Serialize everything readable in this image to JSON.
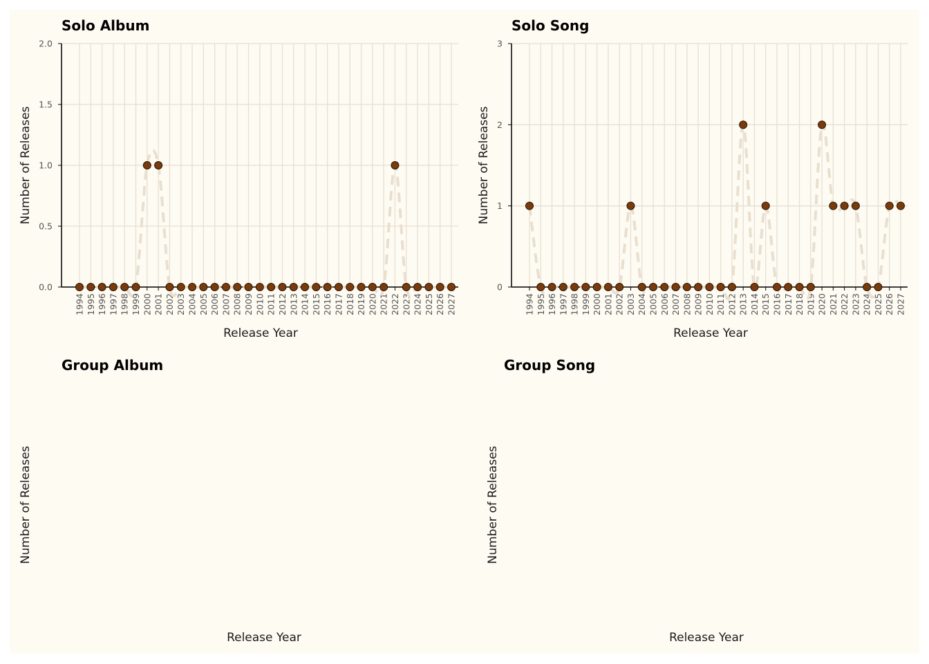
{
  "colors": {
    "background": "#fefbf3",
    "point": "#7a3b0c",
    "line": "#e9dfcf",
    "grid": "#e6e0d3"
  },
  "chart_data": [
    {
      "type": "line",
      "title": "Solo Album",
      "xlabel": "Release Year",
      "ylabel": "Number of Releases",
      "x": [
        "1994",
        "1995",
        "1996",
        "1997",
        "1998",
        "1999",
        "2000",
        "2001",
        "2002",
        "2003",
        "2004",
        "2005",
        "2006",
        "2007",
        "2008",
        "2009",
        "2010",
        "2011",
        "2012",
        "2013",
        "2014",
        "2015",
        "2016",
        "2017",
        "2018",
        "2019",
        "2020",
        "2021",
        "2022",
        "2023",
        "2024",
        "2025",
        "2026",
        "2027"
      ],
      "values": [
        0,
        0,
        0,
        0,
        0,
        0,
        1,
        1,
        0,
        0,
        0,
        0,
        0,
        0,
        0,
        0,
        0,
        0,
        0,
        0,
        0,
        0,
        0,
        0,
        0,
        0,
        0,
        0,
        1,
        0,
        0,
        0,
        0,
        0
      ],
      "ylim": [
        0,
        2
      ],
      "yticks": [
        "0.0",
        "0.5",
        "1.0",
        "1.5",
        "2.0"
      ],
      "grid": true
    },
    {
      "type": "line",
      "title": "Solo Song",
      "xlabel": "Release Year",
      "ylabel": "Number of Releases",
      "x": [
        "1994",
        "1995",
        "1996",
        "1997",
        "1998",
        "1999",
        "2000",
        "2001",
        "2002",
        "2003",
        "2004",
        "2005",
        "2006",
        "2007",
        "2008",
        "2009",
        "2010",
        "2011",
        "2012",
        "2013",
        "2014",
        "2015",
        "2016",
        "2017",
        "2018",
        "2019",
        "2020",
        "2021",
        "2022",
        "2023",
        "2024",
        "2025",
        "2026",
        "2027"
      ],
      "values": [
        1,
        0,
        0,
        0,
        0,
        0,
        0,
        0,
        0,
        1,
        0,
        0,
        0,
        0,
        0,
        0,
        0,
        0,
        0,
        2,
        0,
        1,
        0,
        0,
        0,
        0,
        2,
        1,
        1,
        1,
        0,
        0,
        1,
        1
      ],
      "ylim": [
        0,
        3
      ],
      "yticks": [
        "0",
        "1",
        "2",
        "3"
      ],
      "grid": true
    },
    {
      "type": "line",
      "title": "Group Album",
      "xlabel": "Release Year",
      "ylabel": "Number of Releases",
      "x": [],
      "values": []
    },
    {
      "type": "line",
      "title": "Group Song",
      "xlabel": "Release Year",
      "ylabel": "Number of Releases",
      "x": [],
      "values": []
    }
  ]
}
